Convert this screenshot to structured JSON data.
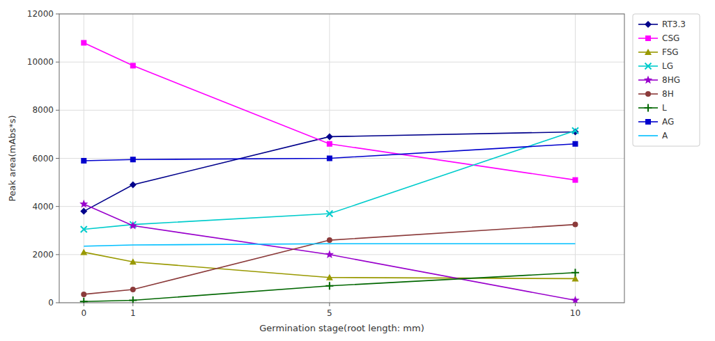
{
  "chart_data": {
    "type": "line",
    "x": [
      0,
      1,
      5,
      10
    ],
    "xlabel": "Germination stage(root length: mm)",
    "ylabel": "Peak area(mAbs*s)",
    "xlim": [
      -0.5,
      11
    ],
    "xticks": [
      0,
      1,
      5,
      10
    ],
    "ylim": [
      0,
      12000
    ],
    "yticks": [
      0,
      2000,
      4000,
      6000,
      8000,
      10000,
      12000
    ],
    "grid": true,
    "legend": "right",
    "series": [
      {
        "name": "RT3.3",
        "color": "#00008B",
        "marker": "diamond",
        "values": [
          3800,
          4900,
          6900,
          7100
        ]
      },
      {
        "name": "CSG",
        "color": "#FF00FF",
        "marker": "square",
        "values": [
          10800,
          9850,
          6600,
          5100
        ]
      },
      {
        "name": "FSG",
        "color": "#999900",
        "marker": "triangle",
        "values": [
          2100,
          1700,
          1050,
          1000
        ]
      },
      {
        "name": "LG",
        "color": "#00CCCC",
        "marker": "x",
        "values": [
          3050,
          3250,
          3700,
          7150
        ]
      },
      {
        "name": "8HG",
        "color": "#9900CC",
        "marker": "star",
        "values": [
          4100,
          3200,
          2000,
          100
        ]
      },
      {
        "name": "8H",
        "color": "#8B3A3A",
        "marker": "circle",
        "values": [
          350,
          550,
          2600,
          3250
        ]
      },
      {
        "name": "L",
        "color": "#006600",
        "marker": "plus",
        "values": [
          50,
          100,
          700,
          1250
        ]
      },
      {
        "name": "AG",
        "color": "#0000CD",
        "marker": "square",
        "values": [
          5900,
          5950,
          6000,
          6600
        ]
      },
      {
        "name": "A",
        "color": "#00BFFF",
        "marker": "none",
        "values": [
          2350,
          2400,
          2450,
          2450
        ]
      }
    ]
  }
}
